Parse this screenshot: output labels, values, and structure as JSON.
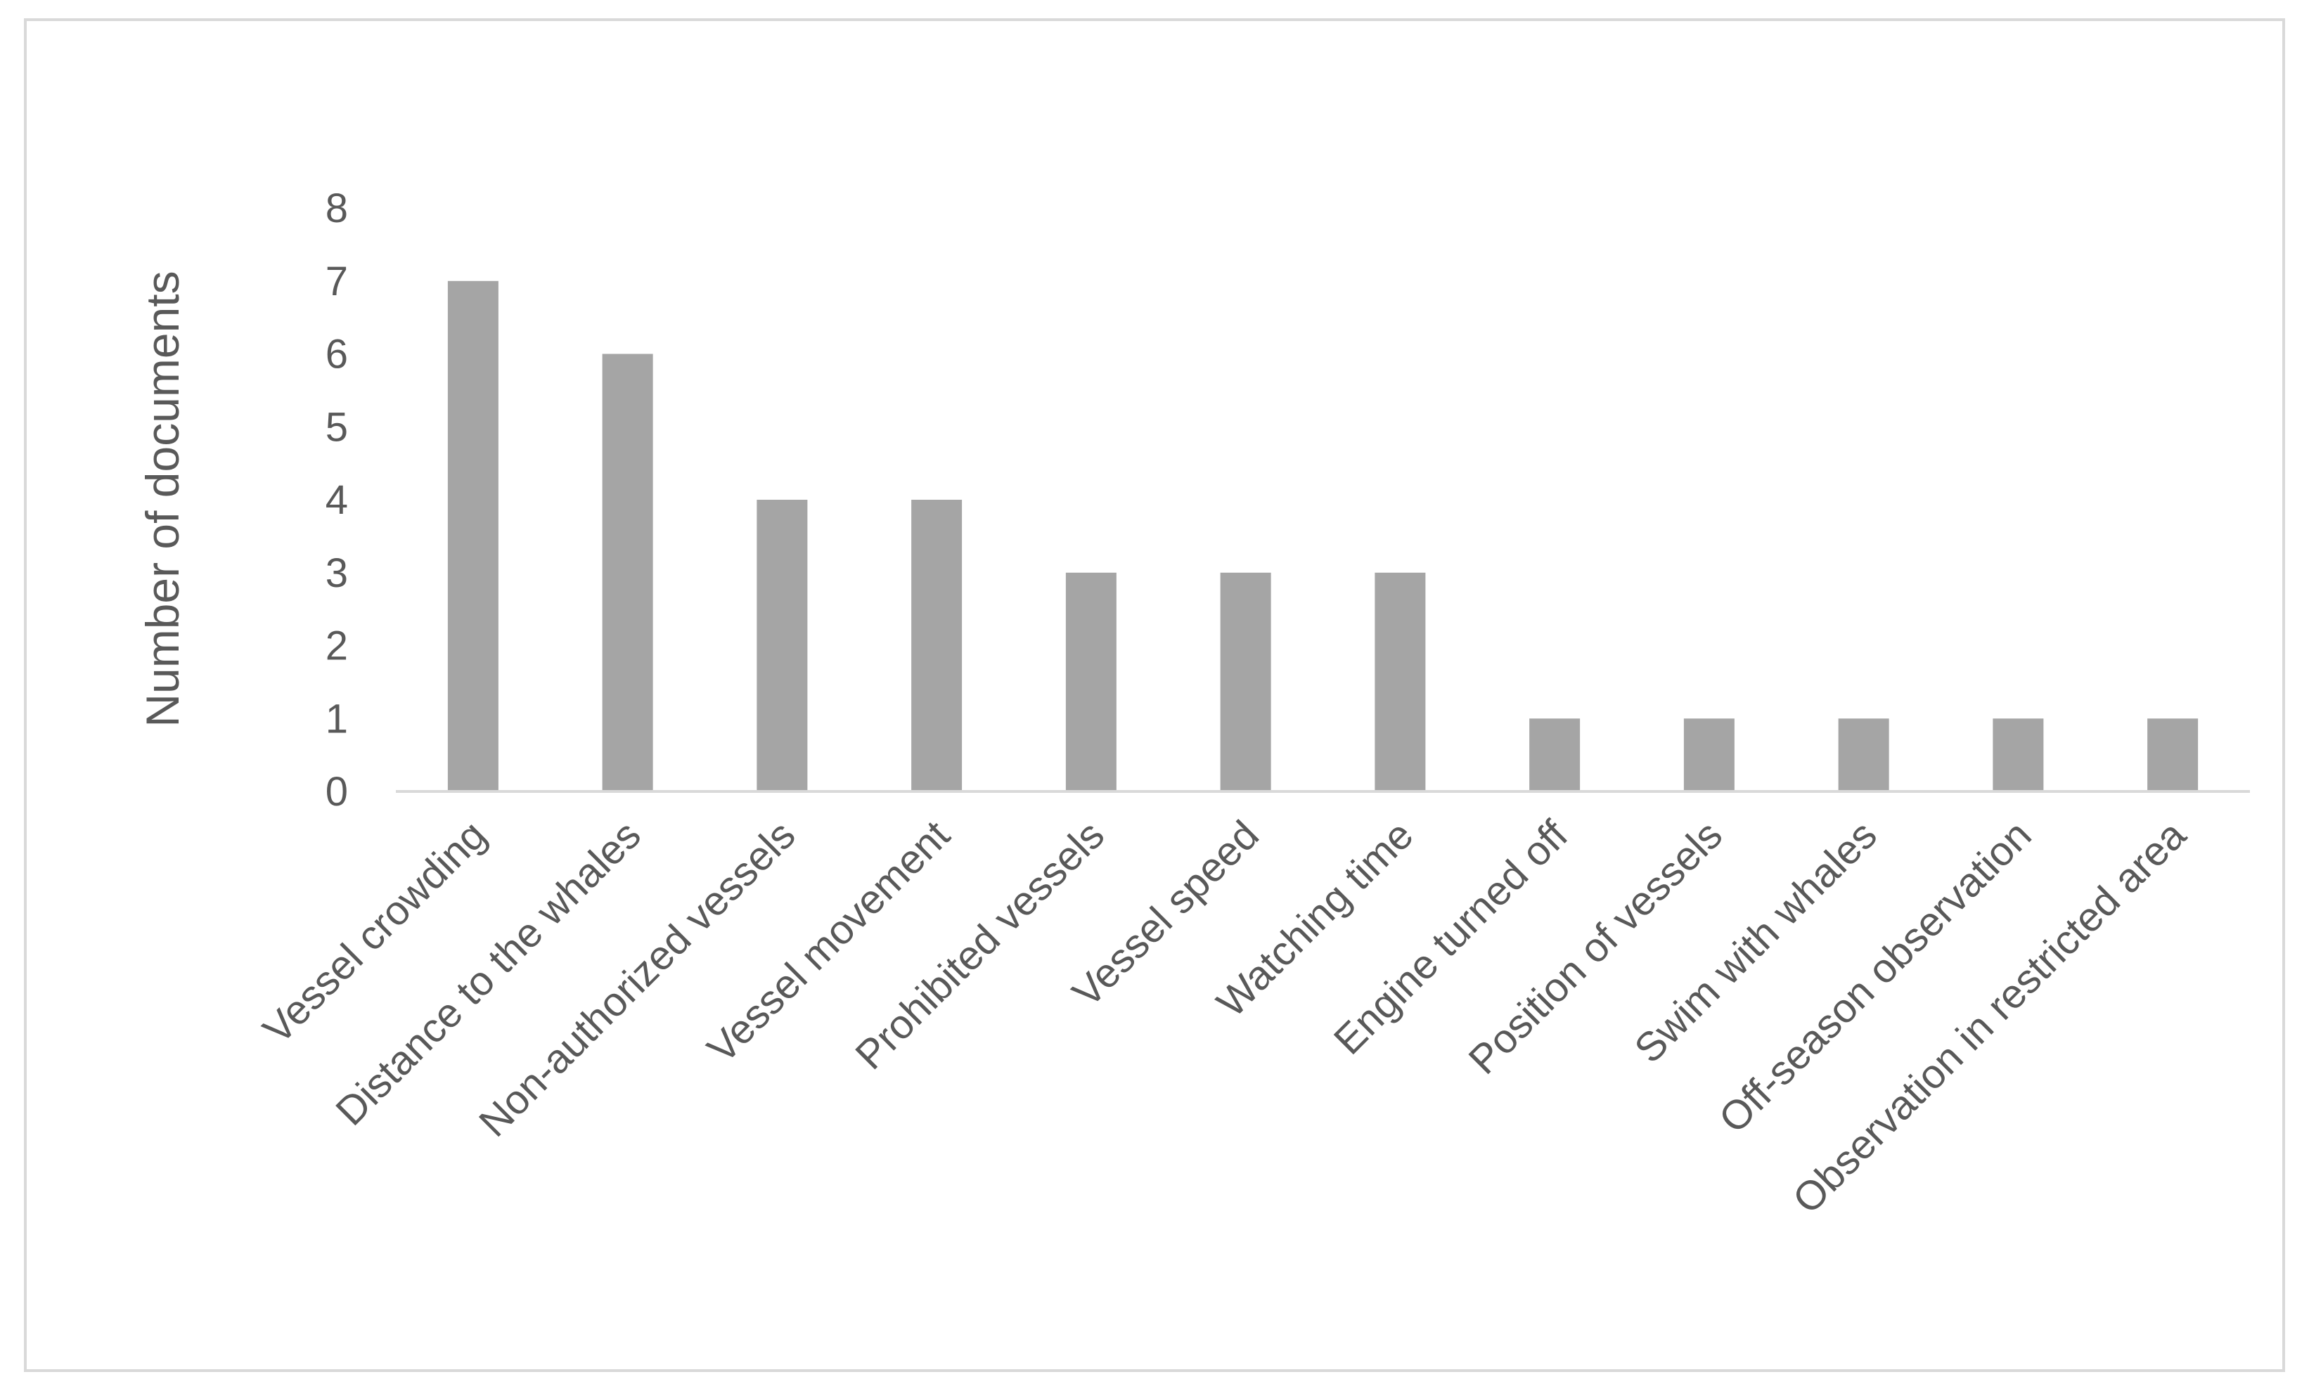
{
  "chart_data": {
    "type": "bar",
    "title": "",
    "xlabel": "",
    "ylabel": "Number of documents",
    "ylim": [
      0,
      8
    ],
    "yticks": [
      "0",
      "1",
      "2",
      "3",
      "4",
      "5",
      "6",
      "7",
      "8"
    ],
    "grid": false,
    "legend": "none",
    "categories": [
      "Vessel crowding",
      "Distance to the whales",
      "Non-authorized vessels",
      "Vessel movement",
      "Prohibited vessels",
      "Vessel speed",
      "Watching time",
      "Engine turned off",
      "Position of vessels",
      "Swim with whales",
      "Off-season observation",
      "Observation in restricted area"
    ],
    "values": [
      7,
      6,
      4,
      4,
      3,
      3,
      3,
      1,
      1,
      1,
      1,
      1
    ],
    "colors": {
      "bar": "#a5a5a5",
      "axis": "#d9d9d9",
      "text": "#595959",
      "border": "#d9d9d9"
    }
  }
}
